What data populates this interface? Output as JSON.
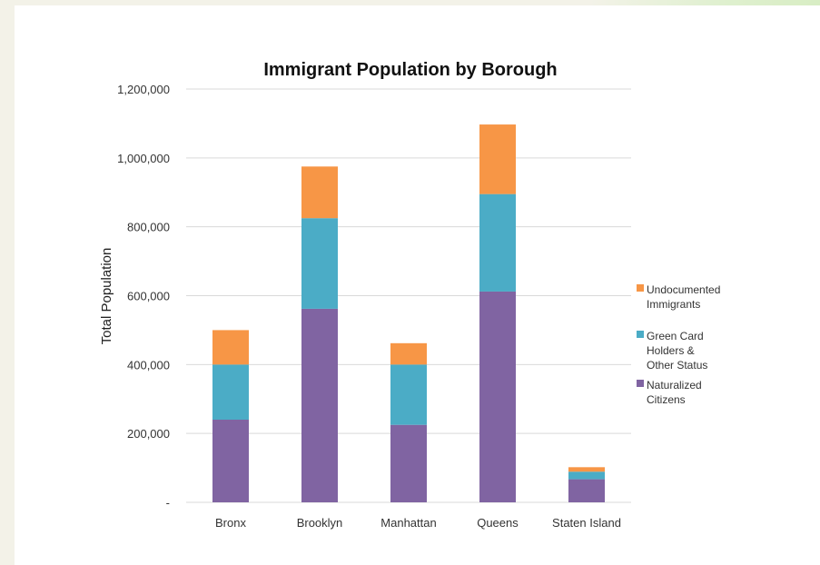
{
  "chart_data": {
    "type": "bar",
    "stacked": true,
    "title": "Immigrant Population by Borough",
    "xlabel": "",
    "ylabel": "Total Population",
    "categories": [
      "Bronx",
      "Brooklyn",
      "Manhattan",
      "Queens",
      "Staten Island"
    ],
    "series": [
      {
        "name": "Naturalized Citizens",
        "color": "#8064a2",
        "values": [
          240000,
          562000,
          225000,
          612000,
          67000
        ]
      },
      {
        "name": "Green Card Holders & Other Status",
        "color": "#4bacc6",
        "values": [
          160000,
          263000,
          175000,
          283000,
          22000
        ]
      },
      {
        "name": "Undocumented Immigrants",
        "color": "#f79646",
        "values": [
          100000,
          150000,
          62000,
          202000,
          13000
        ]
      }
    ],
    "yticks": [
      "-",
      "200,000",
      "400,000",
      "600,000",
      "800,000",
      "1,000,000",
      "1,200,000"
    ],
    "ylim": [
      0,
      1200000
    ],
    "grid": true,
    "legend_position": "right"
  },
  "legend_items": [
    {
      "key": "undocumented",
      "color": "#f79646",
      "lines": [
        "Undocumented",
        "Immigrants"
      ]
    },
    {
      "key": "green-card",
      "color": "#4bacc6",
      "lines": [
        "Green Card",
        "Holders &",
        "Other Status"
      ]
    },
    {
      "key": "naturalized",
      "color": "#8064a2",
      "lines": [
        "Naturalized",
        "Citizens"
      ]
    }
  ],
  "theme": {
    "page_background": "#f3f2e8",
    "chart_background": "#ffffff",
    "gridline_color": "#d9d9d9",
    "top_accent_color": "#d8edc4"
  }
}
